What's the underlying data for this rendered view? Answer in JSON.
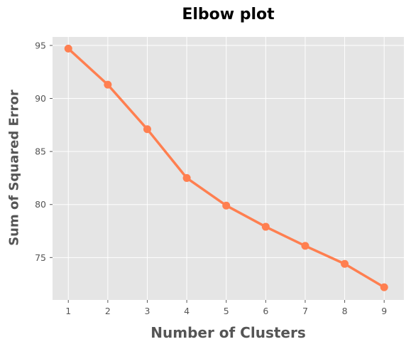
{
  "chart_data": {
    "type": "line",
    "title": "Elbow plot",
    "xlabel": "Number of Clusters",
    "ylabel": "Sum of Squared Error",
    "x": [
      1,
      2,
      3,
      4,
      5,
      6,
      7,
      8,
      9
    ],
    "series": [
      {
        "values": [
          94.7,
          91.3,
          87.1,
          82.5,
          79.9,
          77.9,
          76.1,
          74.4,
          72.2
        ]
      }
    ],
    "xlim": [
      0.6,
      9.5
    ],
    "ylim": [
      71.0,
      95.8
    ],
    "xticks": [
      "1",
      "2",
      "3",
      "4",
      "5",
      "6",
      "7",
      "8",
      "9"
    ],
    "yticks": [
      75,
      80,
      85,
      90,
      95
    ],
    "grid": true,
    "colors": {
      "line": "#ff7f50",
      "background": "#e5e5e5",
      "grid": "#ffffff"
    }
  }
}
